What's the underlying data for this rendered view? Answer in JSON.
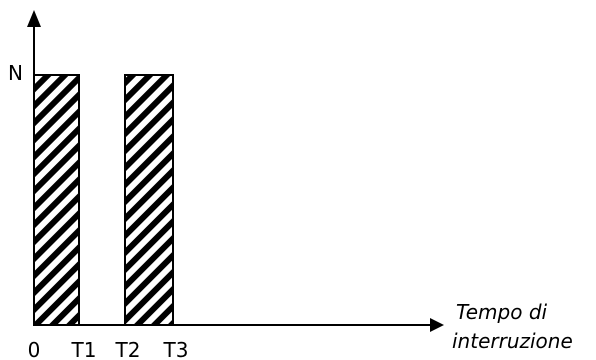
{
  "chart_data": {
    "type": "bar",
    "title": "",
    "ylabel": "N",
    "xlabel_lines": [
      "Tempo di",
      "interruzione"
    ],
    "x_ticks": [
      "0",
      "T1",
      "T2",
      "T3"
    ],
    "ylim": [
      0,
      1.25
    ],
    "bars": [
      {
        "from": "0",
        "to": "T1",
        "value": 1
      },
      {
        "from": "T2",
        "to": "T3",
        "value": 1
      }
    ],
    "fill_pattern": "diagonal-hatch",
    "grid": false,
    "legend": "none"
  }
}
